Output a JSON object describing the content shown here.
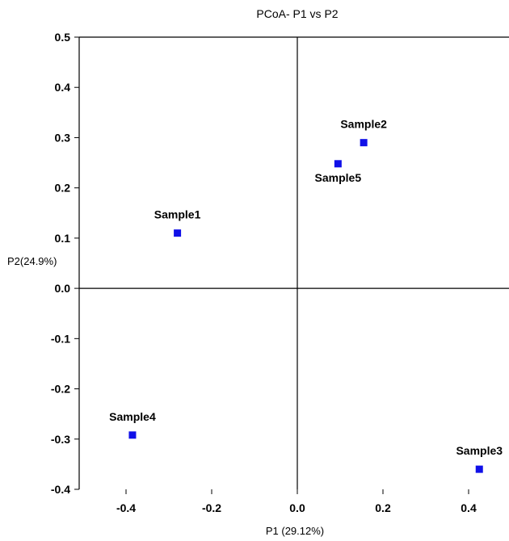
{
  "chart_data": {
    "type": "scatter",
    "title": "PCoA- P1 vs P2",
    "xlabel": "P1 (29.12%)",
    "ylabel": "P2(24.9%)",
    "xlim": [
      -0.5,
      0.5
    ],
    "ylim": [
      -0.4,
      0.5
    ],
    "xticks": [
      -0.4,
      -0.2,
      0.0,
      0.2,
      0.4
    ],
    "xtick_labels": [
      "-0.4",
      "-0.2",
      "0.0",
      "0.2",
      "0.4"
    ],
    "yticks": [
      0.5,
      0.4,
      0.3,
      0.2,
      0.1,
      0.0,
      -0.1,
      -0.2,
      -0.3,
      -0.4
    ],
    "ytick_labels": [
      "0.5",
      "0.4",
      "0.3",
      "0.2",
      "0.1",
      "0.0",
      "-0.1",
      "-0.2",
      "-0.3",
      "-0.4"
    ],
    "grid": false,
    "zero_lines": true,
    "marker_color": "#1010e8",
    "points": [
      {
        "label": "Sample1",
        "x": -0.28,
        "y": 0.11,
        "label_pos": "above"
      },
      {
        "label": "Sample2",
        "x": 0.155,
        "y": 0.29,
        "label_pos": "above"
      },
      {
        "label": "Sample5",
        "x": 0.095,
        "y": 0.248,
        "label_pos": "below"
      },
      {
        "label": "Sample4",
        "x": -0.385,
        "y": -0.292,
        "label_pos": "above"
      },
      {
        "label": "Sample3",
        "x": 0.425,
        "y": -0.36,
        "label_pos": "above"
      }
    ]
  }
}
